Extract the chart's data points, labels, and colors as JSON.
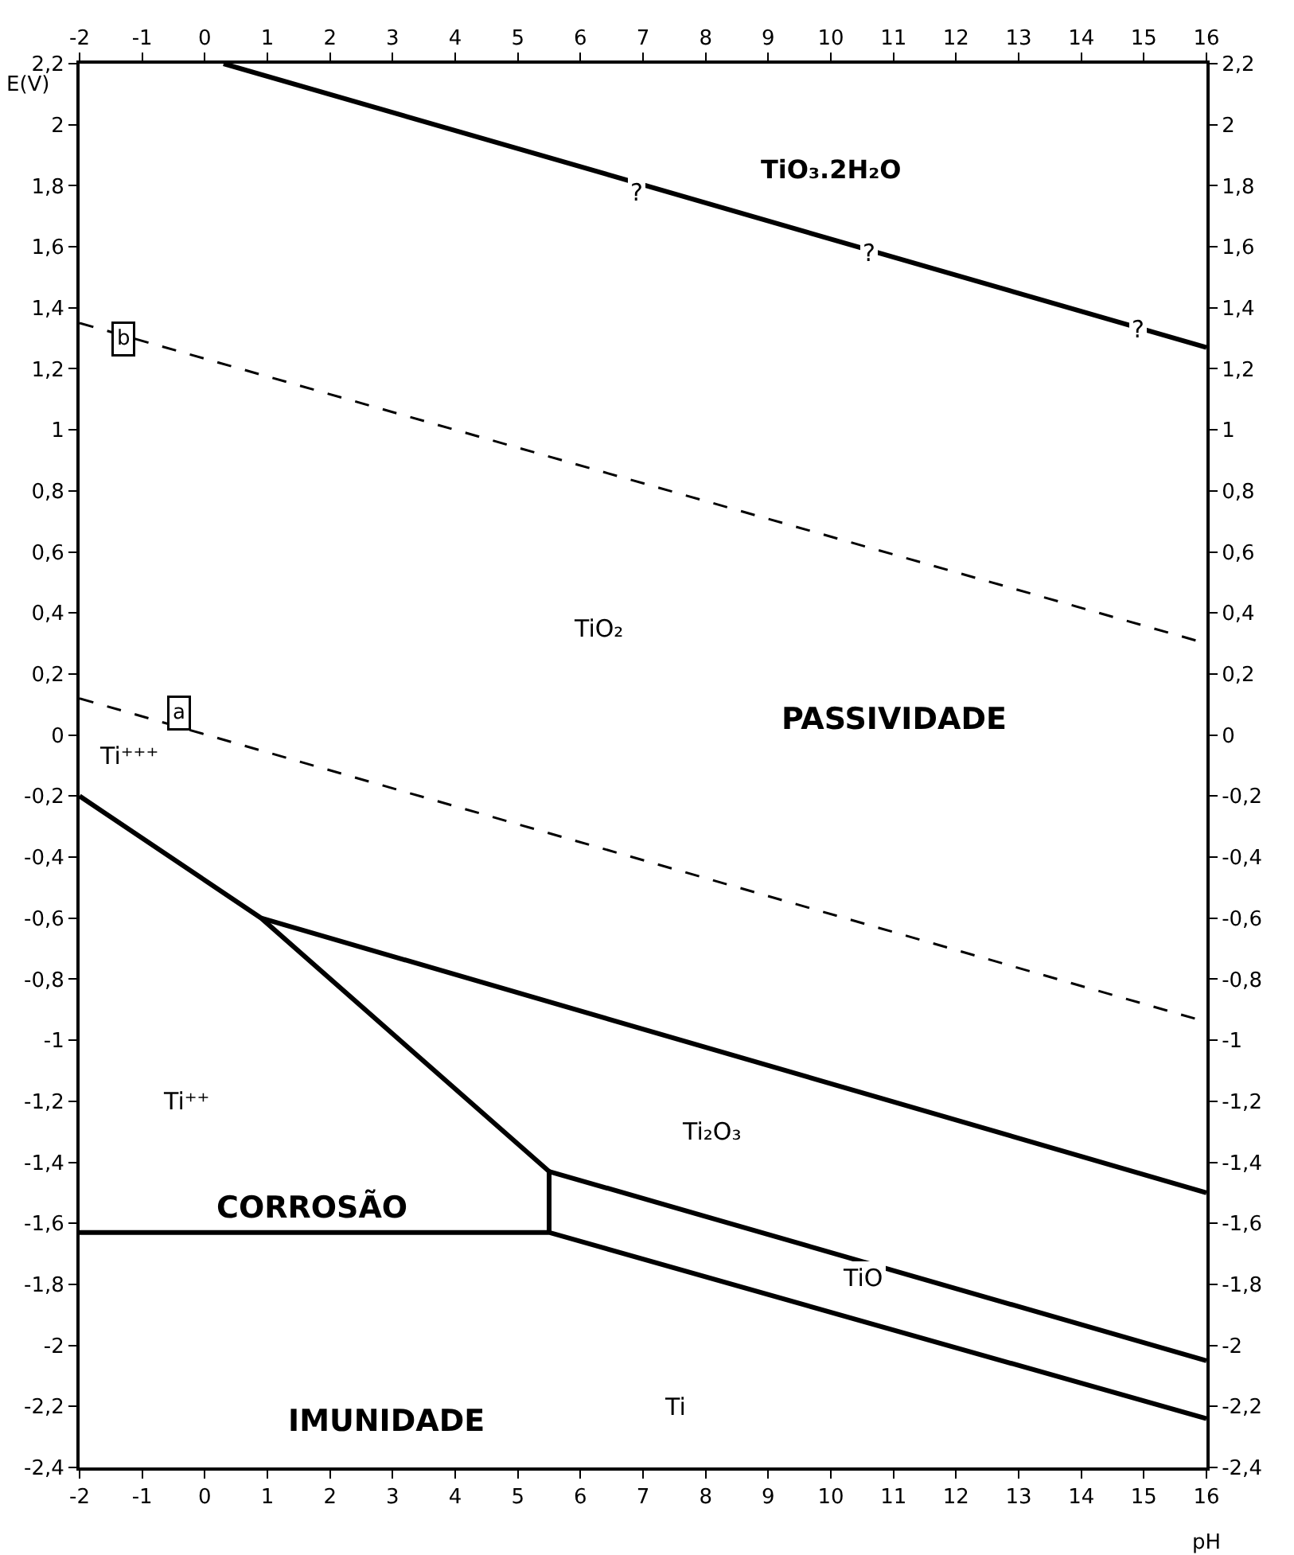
{
  "chart_data": {
    "type": "line",
    "xlabel": "pH",
    "ylabel": "E(V)",
    "xlim": [
      -2,
      16
    ],
    "xticks": [
      -2,
      -1,
      0,
      1,
      2,
      3,
      4,
      5,
      6,
      7,
      8,
      9,
      10,
      11,
      12,
      13,
      14,
      15,
      16
    ],
    "x2lim": [
      -2,
      16
    ],
    "x2ticks": [
      -2,
      -1,
      0,
      1,
      2,
      3,
      4,
      5,
      6,
      7,
      8,
      9,
      10,
      11,
      12,
      13,
      14,
      15,
      16
    ],
    "ylim": [
      -2.4,
      2.2
    ],
    "yticks": [
      {
        "value": -2.4,
        "label": "-2,4"
      },
      {
        "value": -2.2,
        "label": "-2,2"
      },
      -2,
      {
        "value": -1.8,
        "label": "-1,8"
      },
      {
        "value": -1.6,
        "label": "-1,6"
      },
      {
        "value": -1.4,
        "label": "-1,4"
      },
      {
        "value": -1.2,
        "label": "-1,2"
      },
      -1,
      {
        "value": -0.8,
        "label": "-0,8"
      },
      {
        "value": -0.6,
        "label": "-0,6"
      },
      {
        "value": -0.4,
        "label": "-0,4"
      },
      {
        "value": -0.2,
        "label": "-0,2"
      },
      0,
      {
        "value": 0.2,
        "label": "0,2"
      },
      {
        "value": 0.4,
        "label": "0,4"
      },
      {
        "value": 0.6,
        "label": "0,6"
      },
      {
        "value": 0.8,
        "label": "0,8"
      },
      1,
      {
        "value": 1.2,
        "label": "1,2"
      },
      {
        "value": 1.4,
        "label": "1,4"
      },
      {
        "value": 1.6,
        "label": "1,6"
      },
      {
        "value": 1.8,
        "label": "1,8"
      },
      2,
      {
        "value": 2.2,
        "label": "2,2"
      }
    ],
    "y2lim": [
      -2.4,
      2.2
    ],
    "y2ticks": [
      {
        "value": -2.4,
        "label": "-2,4"
      },
      {
        "value": -2.2,
        "label": "-2,2"
      },
      -2,
      {
        "value": -1.8,
        "label": "-1,8"
      },
      {
        "value": -1.6,
        "label": "-1,6"
      },
      {
        "value": -1.4,
        "label": "-1,4"
      },
      {
        "value": -1.2,
        "label": "-1,2"
      },
      -1,
      {
        "value": -0.8,
        "label": "-0,8"
      },
      {
        "value": -0.6,
        "label": "-0,6"
      },
      {
        "value": -0.4,
        "label": "-0,4"
      },
      {
        "value": -0.2,
        "label": "-0,2"
      },
      0,
      {
        "value": 0.2,
        "label": "0,2"
      },
      {
        "value": 0.4,
        "label": "0,4"
      },
      {
        "value": 0.6,
        "label": "0,6"
      },
      {
        "value": 0.8,
        "label": "0,8"
      },
      1,
      {
        "value": 1.2,
        "label": "1,2"
      },
      {
        "value": 1.4,
        "label": "1,4"
      },
      {
        "value": 1.6,
        "label": "1,6"
      },
      {
        "value": 1.8,
        "label": "1,8"
      },
      2,
      {
        "value": 2.2,
        "label": "2,2"
      }
    ],
    "marker": "none",
    "series": [
      {
        "color": "#000000",
        "line_style": "solid",
        "x": [
          0.3,
          16
        ],
        "values": [
          2.2,
          1.27
        ]
      },
      {
        "color": "#000000",
        "line_style": "dashed",
        "x": [
          -2,
          16
        ],
        "values": [
          1.35,
          0.3
        ]
      },
      {
        "color": "#000000",
        "line_style": "dashed",
        "x": [
          -2,
          16
        ],
        "values": [
          0.12,
          -0.94
        ]
      },
      {
        "color": "#000000",
        "line_style": "solid",
        "x": [
          -2,
          0.9,
          5.5,
          5.5
        ],
        "values": [
          -0.2,
          -0.6,
          -1.43,
          -1.63
        ]
      },
      {
        "color": "#000000",
        "line_style": "solid",
        "x": [
          0.9,
          16
        ],
        "values": [
          -0.6,
          -1.5
        ]
      },
      {
        "color": "#000000",
        "line_style": "solid",
        "x": [
          5.5,
          16
        ],
        "values": [
          -1.43,
          -2.05
        ]
      },
      {
        "color": "#000000",
        "line_style": "solid",
        "x": [
          -2,
          5.5,
          16
        ],
        "values": [
          -1.63,
          -1.63,
          -2.24
        ]
      }
    ],
    "annotations": [
      "TiO₃.2H₂O",
      {
        "text": "?",
        "x": 6.9,
        "y": 1.78
      },
      {
        "text": "?",
        "x": 10.6,
        "y": 1.58
      },
      {
        "text": "?",
        "x": 14.9,
        "y": 1.33
      },
      {
        "text": "b",
        "x": -1.3,
        "y": 1.3
      },
      {
        "text": "a",
        "x": -0.4,
        "y": 0.07
      },
      {
        "text": "TiO₂",
        "x": 6.3,
        "y": 0.35
      },
      "PASSIVIDADE",
      {
        "text": "Ti⁺⁺⁺",
        "x": -1.2,
        "y": -0.07
      },
      {
        "text": "Ti⁺⁺",
        "x": -0.3,
        "y": -1.2
      },
      {
        "text": "Ti₂O₃",
        "x": 8.1,
        "y": -1.3
      },
      "CORROSÃO",
      {
        "text": "TiO",
        "x": 10.5,
        "y": -1.78
      },
      "IMUNIDADE",
      {
        "text": "Ti",
        "x": 7.5,
        "y": -2.2
      }
    ]
  }
}
